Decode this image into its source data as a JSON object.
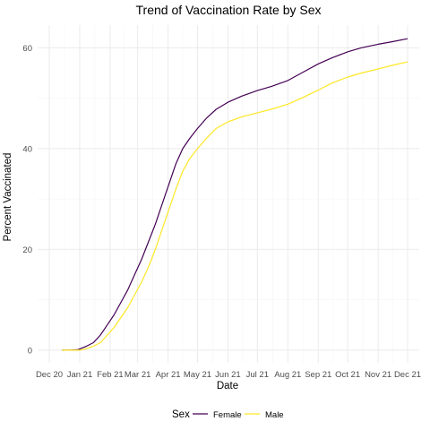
{
  "chart_data": {
    "type": "line",
    "title": "Trend of Vaccination Rate by Sex",
    "xlabel": "Date",
    "ylabel": "Percent Vaccinated",
    "x_axis_type": "date",
    "xlim": [
      "2020-12-01",
      "2021-12-01"
    ],
    "ylim": [
      -2.5,
      64.5
    ],
    "x_ticks": [
      {
        "date": "2020-12-01",
        "label": "Dec 20"
      },
      {
        "date": "2021-01-01",
        "label": "Jan 21"
      },
      {
        "date": "2021-02-01",
        "label": "Feb 21"
      },
      {
        "date": "2021-03-01",
        "label": "Mar 21"
      },
      {
        "date": "2021-04-01",
        "label": "Apr 21"
      },
      {
        "date": "2021-05-01",
        "label": "May 21"
      },
      {
        "date": "2021-06-01",
        "label": "Jun 21"
      },
      {
        "date": "2021-07-01",
        "label": "Jul 21"
      },
      {
        "date": "2021-08-01",
        "label": "Aug 21"
      },
      {
        "date": "2021-09-01",
        "label": "Sep 21"
      },
      {
        "date": "2021-10-01",
        "label": "Oct 21"
      },
      {
        "date": "2021-11-01",
        "label": "Nov 21"
      },
      {
        "date": "2021-12-01",
        "label": "Dec 21"
      }
    ],
    "y_ticks": [
      0,
      20,
      40,
      60
    ],
    "grid": true,
    "legend": {
      "title": "Sex",
      "position": "bottom"
    },
    "series": [
      {
        "name": "Female",
        "color": "#440154",
        "points": [
          [
            "2020-12-14",
            0
          ],
          [
            "2020-12-22",
            0
          ],
          [
            "2020-12-30",
            0.1
          ],
          [
            "2021-01-08",
            0.8
          ],
          [
            "2021-01-15",
            1.5
          ],
          [
            "2021-01-22",
            3
          ],
          [
            "2021-01-29",
            5
          ],
          [
            "2021-02-05",
            7
          ],
          [
            "2021-02-12",
            9.5
          ],
          [
            "2021-02-19",
            12
          ],
          [
            "2021-02-26",
            15
          ],
          [
            "2021-03-05",
            18
          ],
          [
            "2021-03-12",
            21.5
          ],
          [
            "2021-03-19",
            25
          ],
          [
            "2021-03-26",
            29
          ],
          [
            "2021-04-02",
            33
          ],
          [
            "2021-04-09",
            37
          ],
          [
            "2021-04-16",
            40
          ],
          [
            "2021-04-23",
            42
          ],
          [
            "2021-05-01",
            44
          ],
          [
            "2021-05-10",
            46
          ],
          [
            "2021-05-20",
            47.8
          ],
          [
            "2021-06-01",
            49.2
          ],
          [
            "2021-06-15",
            50.4
          ],
          [
            "2021-07-01",
            51.5
          ],
          [
            "2021-07-15",
            52.3
          ],
          [
            "2021-08-01",
            53.5
          ],
          [
            "2021-08-15",
            55
          ],
          [
            "2021-09-01",
            56.8
          ],
          [
            "2021-09-15",
            58
          ],
          [
            "2021-10-01",
            59.2
          ],
          [
            "2021-10-15",
            60
          ],
          [
            "2021-11-01",
            60.7
          ],
          [
            "2021-11-15",
            61.2
          ],
          [
            "2021-12-01",
            61.8
          ]
        ]
      },
      {
        "name": "Male",
        "color": "#FDE725",
        "points": [
          [
            "2020-12-14",
            0
          ],
          [
            "2020-12-22",
            0
          ],
          [
            "2021-01-01",
            0
          ],
          [
            "2021-01-08",
            0.3
          ],
          [
            "2021-01-15",
            0.8
          ],
          [
            "2021-01-22",
            1.5
          ],
          [
            "2021-01-29",
            3
          ],
          [
            "2021-02-05",
            4.5
          ],
          [
            "2021-02-12",
            6.5
          ],
          [
            "2021-02-19",
            8.5
          ],
          [
            "2021-02-26",
            11
          ],
          [
            "2021-03-05",
            13.5
          ],
          [
            "2021-03-12",
            16.5
          ],
          [
            "2021-03-19",
            20
          ],
          [
            "2021-03-26",
            24
          ],
          [
            "2021-04-02",
            28
          ],
          [
            "2021-04-09",
            32
          ],
          [
            "2021-04-16",
            35.5
          ],
          [
            "2021-04-23",
            38
          ],
          [
            "2021-05-01",
            40
          ],
          [
            "2021-05-10",
            42
          ],
          [
            "2021-05-20",
            44
          ],
          [
            "2021-06-01",
            45.3
          ],
          [
            "2021-06-15",
            46.3
          ],
          [
            "2021-07-01",
            47.1
          ],
          [
            "2021-07-15",
            47.8
          ],
          [
            "2021-08-01",
            48.8
          ],
          [
            "2021-08-15",
            50
          ],
          [
            "2021-09-01",
            51.6
          ],
          [
            "2021-09-15",
            53
          ],
          [
            "2021-10-01",
            54.2
          ],
          [
            "2021-10-15",
            55
          ],
          [
            "2021-11-01",
            55.8
          ],
          [
            "2021-11-15",
            56.5
          ],
          [
            "2021-12-01",
            57.2
          ]
        ]
      }
    ]
  }
}
